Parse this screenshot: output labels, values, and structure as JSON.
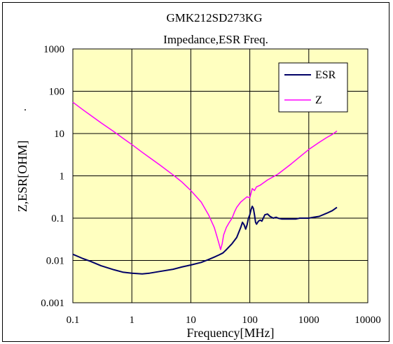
{
  "chart_data": {
    "type": "line",
    "title": "GMK212SD273KG",
    "subtitle": "Impedance,ESR Freq.",
    "xlabel": "Frequency[MHz]",
    "ylabel": "Z,ESR[OHM]",
    "x_scale": "log",
    "y_scale": "log",
    "xlim": [
      0.1,
      10000
    ],
    "ylim": [
      0.001,
      1000
    ],
    "x_ticks": [
      "0.1",
      "1",
      "10",
      "100",
      "1000",
      "10000"
    ],
    "y_ticks": [
      "0.001",
      "0.01",
      "0.1",
      "1",
      "10",
      "100",
      "1000"
    ],
    "grid": true,
    "legend_position": "top-right",
    "plot_background": "#ffffc0",
    "stray_mark": ".",
    "series": [
      {
        "name": "ESR",
        "color": "#000066",
        "x": [
          0.1,
          0.15,
          0.2,
          0.3,
          0.5,
          0.7,
          1,
          1.5,
          2,
          3,
          5,
          7,
          10,
          15,
          20,
          25,
          30,
          35,
          40,
          50,
          60,
          70,
          75,
          80,
          85,
          90,
          95,
          100,
          105,
          110,
          115,
          120,
          125,
          130,
          140,
          150,
          160,
          180,
          200,
          220,
          250,
          280,
          300,
          350,
          400,
          500,
          600,
          700,
          800,
          1000,
          1200,
          1500,
          2000,
          2500,
          3000
        ],
        "y": [
          0.014,
          0.011,
          0.0095,
          0.0075,
          0.006,
          0.0053,
          0.005,
          0.0048,
          0.005,
          0.0055,
          0.0062,
          0.007,
          0.0078,
          0.009,
          0.0105,
          0.012,
          0.0135,
          0.015,
          0.018,
          0.025,
          0.035,
          0.06,
          0.08,
          0.07,
          0.055,
          0.07,
          0.1,
          0.12,
          0.16,
          0.19,
          0.17,
          0.12,
          0.08,
          0.072,
          0.085,
          0.09,
          0.085,
          0.12,
          0.125,
          0.11,
          0.1,
          0.105,
          0.1,
          0.095,
          0.095,
          0.095,
          0.095,
          0.1,
          0.1,
          0.1,
          0.105,
          0.11,
          0.13,
          0.15,
          0.18
        ]
      },
      {
        "name": "Z",
        "color": "#ff00ff",
        "x": [
          0.1,
          0.15,
          0.2,
          0.3,
          0.5,
          0.7,
          1,
          1.5,
          2,
          3,
          5,
          7,
          10,
          15,
          20,
          25,
          28,
          30,
          32,
          34,
          36,
          40,
          45,
          50,
          55,
          60,
          70,
          80,
          90,
          100,
          110,
          120,
          130,
          150,
          200,
          300,
          500,
          700,
          1000,
          1500,
          2000,
          2500,
          3000
        ],
        "y": [
          55,
          36,
          27,
          18,
          11,
          7.8,
          5.5,
          3.6,
          2.7,
          1.8,
          1.05,
          0.72,
          0.45,
          0.24,
          0.12,
          0.06,
          0.035,
          0.025,
          0.018,
          0.025,
          0.04,
          0.06,
          0.08,
          0.1,
          0.14,
          0.18,
          0.24,
          0.28,
          0.32,
          0.3,
          0.5,
          0.45,
          0.55,
          0.6,
          0.8,
          1.1,
          1.9,
          2.8,
          4.2,
          6.2,
          8,
          9.5,
          11.5
        ]
      }
    ]
  }
}
